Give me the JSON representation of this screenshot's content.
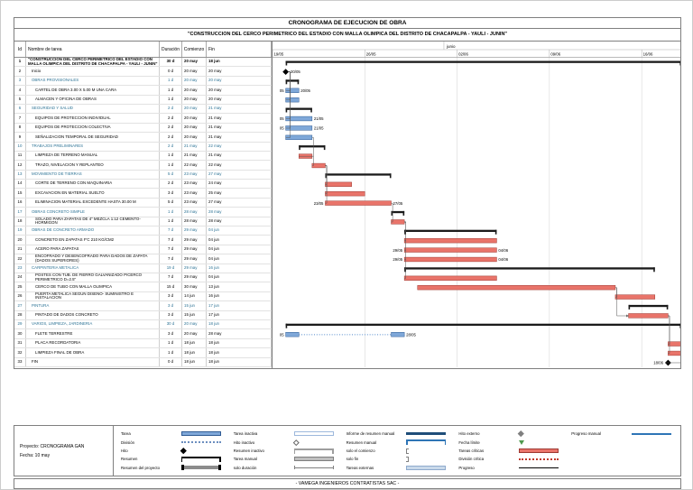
{
  "page": {
    "subtitle": "\"CONSTRUCCION DEL CERCO PERIMETRICO DEL ESTADIO CON MALLA OLIMPICA DEL DISTRITO DE CHACAPALPA - YAULI - JUNIN\"",
    "footer": "- VAMEGA INGENIEROS CONTRATISTAS SAC -"
  },
  "project_info": {
    "project": "Proyecto: CRONOGRAMA GAN",
    "date": "Fecha: 10 may"
  },
  "table": {
    "headers": [
      "Id",
      "Nombre de tarea",
      "Duración",
      "Comienzo",
      "Fin"
    ]
  },
  "colors": {
    "task": "#7FA8D9",
    "task_border": "#2F5B94",
    "critical": "#E9746A",
    "critical_border": "#9E3A33",
    "summary": "#1a1a1a",
    "summary_text": "#2E7496",
    "grid": "#d0d0d0",
    "link": "#555555"
  },
  "chart_data": {
    "type": "gantt",
    "title": "CRONOGRAMA DE EJECUCION DE OBRA",
    "timescale": {
      "month_label": "junio",
      "month_day": 13,
      "total_days": 31,
      "ticks": [
        {
          "label": "19/05",
          "day": 0
        },
        {
          "label": "26/05",
          "day": 7
        },
        {
          "label": "02/06",
          "day": 14
        },
        {
          "label": "09/06",
          "day": 21
        },
        {
          "label": "16/06",
          "day": 28
        }
      ]
    },
    "tasks": [
      {
        "id": "1",
        "name": "\"CONSTRUCCION DEL CERCO PERIMETRICO DEL ESTADIO CON MALLA OLIMPICA DEL DISTRITO DE CHACAPALPA - YAULI - JUNIN\"",
        "dur": "30 d",
        "start": "20 may",
        "end": "18 jun",
        "level": 0,
        "kind": "summary",
        "s": 1,
        "e": 31
      },
      {
        "id": "2",
        "name": "Inicio",
        "dur": "0 d",
        "start": "20 may",
        "end": "20 may",
        "level": 1,
        "kind": "milestone",
        "s": 1,
        "labelR": "20/05"
      },
      {
        "id": "3",
        "name": "OBRAS PROVISIONALES",
        "dur": "1 d",
        "start": "20 may",
        "end": "20 may",
        "level": 1,
        "kind": "summary",
        "s": 1,
        "e": 2
      },
      {
        "id": "4",
        "name": "CARTEL DE OBRA 3.00 X 5.00 M UNA CARA",
        "dur": "1 d",
        "start": "20 may",
        "end": "20 may",
        "level": 2,
        "kind": "task",
        "s": 1,
        "e": 2,
        "labelL": "05",
        "labelR": "20/05"
      },
      {
        "id": "5",
        "name": "ALMACEN Y OFICINA DE OBRAS",
        "dur": "1 d",
        "start": "20 may",
        "end": "20 may",
        "level": 2,
        "kind": "task",
        "s": 1,
        "e": 2
      },
      {
        "id": "6",
        "name": "SEGURIDAD Y SALUD",
        "dur": "2 d",
        "start": "20 may",
        "end": "21 may",
        "level": 1,
        "kind": "summary",
        "s": 1,
        "e": 3
      },
      {
        "id": "7",
        "name": "EQUIPOS DE PROTECCION INDIVIDUAL",
        "dur": "2 d",
        "start": "20 may",
        "end": "21 may",
        "level": 2,
        "kind": "task",
        "s": 1,
        "e": 3,
        "labelL": "05",
        "labelR": "21/05"
      },
      {
        "id": "8",
        "name": "EQUIPOS DE PROTECCION COLECTIVA",
        "dur": "2 d",
        "start": "20 may",
        "end": "21 may",
        "level": 2,
        "kind": "task",
        "s": 1,
        "e": 3,
        "labelL": "05",
        "labelR": "21/05"
      },
      {
        "id": "9",
        "name": "SEÑALIZACION TEMPORAL DE SEGURIDAD",
        "dur": "2 d",
        "start": "20 may",
        "end": "21 may",
        "level": 2,
        "kind": "task",
        "s": 1,
        "e": 3
      },
      {
        "id": "10",
        "name": "TRABAJOS PRELIMINARES",
        "dur": "2 d",
        "start": "21 may",
        "end": "22 may",
        "level": 1,
        "kind": "summary",
        "s": 2,
        "e": 4
      },
      {
        "id": "11",
        "name": "LIMPIEZA DE TERRENO MANUAL",
        "dur": "1 d",
        "start": "21 may",
        "end": "21 may",
        "level": 2,
        "kind": "critical",
        "s": 2,
        "e": 3
      },
      {
        "id": "12",
        "name": "TRAZO, NIVELACION Y REPLANTEO",
        "dur": "1 d",
        "start": "22 may",
        "end": "22 may",
        "level": 2,
        "kind": "critical",
        "s": 3,
        "e": 4
      },
      {
        "id": "13",
        "name": "MOVIMIENTO DE TIERRAS",
        "dur": "5 d",
        "start": "23 may",
        "end": "27 may",
        "level": 1,
        "kind": "summary",
        "s": 4,
        "e": 9
      },
      {
        "id": "14",
        "name": "CORTE DE TERRENO CON MAQUINARIA",
        "dur": "2 d",
        "start": "23 may",
        "end": "24 may",
        "level": 2,
        "kind": "critical",
        "s": 4,
        "e": 6
      },
      {
        "id": "15",
        "name": "EXCAVACION EN MATERIAL SUELTO",
        "dur": "3 d",
        "start": "23 may",
        "end": "25 may",
        "level": 2,
        "kind": "critical",
        "s": 4,
        "e": 7
      },
      {
        "id": "16",
        "name": "ELIMINACION MATERIAL EXCEDENTE HASTA 30.00 M",
        "dur": "5 d",
        "start": "23 may",
        "end": "27 may",
        "level": 2,
        "kind": "critical",
        "s": 4,
        "e": 9,
        "labelL": "23/05",
        "labelR": "27/05"
      },
      {
        "id": "17",
        "name": "OBRAS CONCRETO SIMPLE",
        "dur": "1 d",
        "start": "28 may",
        "end": "28 may",
        "level": 1,
        "kind": "summary",
        "s": 9,
        "e": 10
      },
      {
        "id": "18",
        "name": "SOLADO PARA ZAPATAS DE 4\" MEZCLA 1:12 CEMENTO-HORMIGON",
        "dur": "1 d",
        "start": "28 may",
        "end": "28 may",
        "level": 2,
        "kind": "critical",
        "s": 9,
        "e": 10
      },
      {
        "id": "19",
        "name": "OBRAS DE CONCRETO ARMADO",
        "dur": "7 d",
        "start": "29 may",
        "end": "04 jun",
        "level": 1,
        "kind": "summary",
        "s": 10,
        "e": 17
      },
      {
        "id": "20",
        "name": "CONCRETO EN ZAPATAS F'C 210 KG/CM2",
        "dur": "7 d",
        "start": "29 may",
        "end": "04 jun",
        "level": 2,
        "kind": "critical",
        "s": 10,
        "e": 17
      },
      {
        "id": "21",
        "name": "ACERO PARA ZAPATAS",
        "dur": "7 d",
        "start": "29 may",
        "end": "04 jun",
        "level": 2,
        "kind": "critical",
        "s": 10,
        "e": 17,
        "labelL": "29/05",
        "labelR": "04/06"
      },
      {
        "id": "22",
        "name": "ENCOFRADO Y DESENCOFRADO PARA DADOS DE ZAPATA (DADOS SUPERIORES)",
        "dur": "7 d",
        "start": "29 may",
        "end": "04 jun",
        "level": 2,
        "kind": "critical",
        "s": 10,
        "e": 17,
        "labelL": "29/05",
        "labelR": "04/06"
      },
      {
        "id": "23",
        "name": "CARPINTERIA METALICA",
        "dur": "19 d",
        "start": "29 may",
        "end": "16 jun",
        "level": 1,
        "kind": "summary",
        "s": 10,
        "e": 29
      },
      {
        "id": "24",
        "name": "POSTES CON TUB. DE FIERRO GALVANIZADO P/CERCO PERIMETRICO D=2.5\"",
        "dur": "7 d",
        "start": "29 may",
        "end": "04 jun",
        "level": 2,
        "kind": "critical",
        "s": 10,
        "e": 17
      },
      {
        "id": "25",
        "name": "CERCO DE TUBO CON MALLA OLIMPICA",
        "dur": "15 d",
        "start": "30 may",
        "end": "13 jun",
        "level": 2,
        "kind": "critical",
        "s": 11,
        "e": 26
      },
      {
        "id": "26",
        "name": "PUERTA METALICA SEGUN DISEÑO- SUMINISTRO E INSTALACION",
        "dur": "3 d",
        "start": "14 jun",
        "end": "16 jun",
        "level": 2,
        "kind": "critical",
        "s": 26,
        "e": 29
      },
      {
        "id": "27",
        "name": "PINTURA",
        "dur": "3 d",
        "start": "15 jun",
        "end": "17 jun",
        "level": 1,
        "kind": "summary",
        "s": 27,
        "e": 30
      },
      {
        "id": "28",
        "name": "PINTADO DE DADOS CONCRETO",
        "dur": "3 d",
        "start": "15 jun",
        "end": "17 jun",
        "level": 2,
        "kind": "critical",
        "s": 27,
        "e": 30
      },
      {
        "id": "29",
        "name": "VARIOS, LIMPIEZA, JARDINERIA",
        "dur": "30 d",
        "start": "20 may",
        "end": "18 jun",
        "level": 1,
        "kind": "summary",
        "s": 1,
        "e": 31
      },
      {
        "id": "30",
        "name": "FLETE TERRESTRE",
        "dur": "3 d",
        "start": "20 may",
        "end": "28 may",
        "level": 2,
        "kind": "split",
        "s": 1,
        "e": 10,
        "labelL": "05",
        "labelR": "28/05"
      },
      {
        "id": "31",
        "name": "PLACA RECORDATORIA",
        "dur": "1 d",
        "start": "18 jun",
        "end": "18 jun",
        "level": 2,
        "kind": "critical",
        "s": 30,
        "e": 31
      },
      {
        "id": "32",
        "name": "LIMPIEZA FINAL DE OBRA",
        "dur": "1 d",
        "start": "18 jun",
        "end": "18 jun",
        "level": 2,
        "kind": "critical",
        "s": 30,
        "e": 31
      },
      {
        "id": "33",
        "name": "FIN",
        "dur": "0 d",
        "start": "18 jun",
        "end": "18 jun",
        "level": 1,
        "kind": "milestone",
        "s": 30,
        "labelL": "18/06"
      }
    ],
    "links": [
      [
        2,
        4
      ],
      [
        2,
        5
      ],
      [
        2,
        7
      ],
      [
        2,
        8
      ],
      [
        2,
        9
      ],
      [
        9,
        11
      ],
      [
        11,
        12
      ],
      [
        12,
        14
      ],
      [
        12,
        15
      ],
      [
        12,
        16
      ],
      [
        16,
        18
      ],
      [
        18,
        20
      ],
      [
        18,
        21
      ],
      [
        18,
        22
      ],
      [
        18,
        24
      ],
      [
        25,
        26
      ],
      [
        25,
        28
      ],
      [
        28,
        31
      ],
      [
        28,
        32
      ],
      [
        32,
        33
      ]
    ]
  },
  "legend": {
    "columns": [
      [
        {
          "label": "Tarea",
          "type": "tarea"
        },
        {
          "label": "División",
          "type": "division"
        },
        {
          "label": "Hito",
          "type": "hito"
        },
        {
          "label": "Resumen",
          "type": "resumen"
        },
        {
          "label": "Resumen del proyecto",
          "type": "resumen_proyecto"
        }
      ],
      [
        {
          "label": "Tarea inactiva",
          "type": "tarea_inactiva"
        },
        {
          "label": "Hito inactivo",
          "type": "hito_inactivo"
        },
        {
          "label": "Resumen inactivo",
          "type": "resumen_inactivo"
        },
        {
          "label": "Tarea manual",
          "type": "tarea_manual"
        },
        {
          "label": "solo duración",
          "type": "solo_duracion"
        }
      ],
      [
        {
          "label": "Informe de resumen manual",
          "type": "informe_resumen_manual"
        },
        {
          "label": "Resumen manual",
          "type": "resumen_manual"
        },
        {
          "label": "solo el comienzo",
          "type": "solo_comienzo"
        },
        {
          "label": "solo fin",
          "type": "solo_fin"
        },
        {
          "label": "Tareas externas",
          "type": "tareas_externas"
        }
      ],
      [
        {
          "label": "Hito externo",
          "type": "hito_externo"
        },
        {
          "label": "Fecha límite",
          "type": "fecha_limite"
        },
        {
          "label": "Tareas críticas",
          "type": "tareas_criticas"
        },
        {
          "label": "División crítica",
          "type": "division_critica"
        },
        {
          "label": "Progreso",
          "type": "progreso"
        }
      ],
      [
        {
          "label": "Progreso manual",
          "type": "progreso_manual"
        }
      ]
    ]
  }
}
